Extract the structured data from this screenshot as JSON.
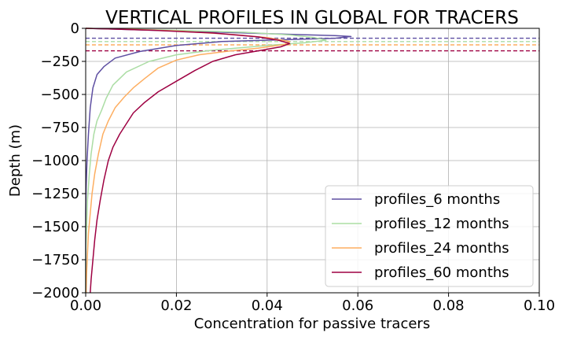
{
  "chart_data": {
    "type": "line",
    "title": "VERTICAL PROFILES IN GLOBAL FOR TRACERS",
    "xlabel": "Concentration for passive tracers",
    "ylabel": "Depth (m)",
    "xlim": [
      0.0,
      0.1
    ],
    "ylim": [
      -2000,
      0
    ],
    "xticks": [
      "0.00",
      "0.02",
      "0.04",
      "0.06",
      "0.08",
      "0.10"
    ],
    "yticks": [
      "0",
      "−250",
      "−500",
      "−750",
      "−1000",
      "−1250",
      "−1500",
      "−1750",
      "−2000"
    ],
    "grid": true,
    "legend_position": "lower-right",
    "series": [
      {
        "name": "profiles_6 months",
        "color": "#5e4fa2",
        "peak_depth_line": -75,
        "points": [
          [
            0.0,
            0
          ],
          [
            0.005,
            -5
          ],
          [
            0.015,
            -15
          ],
          [
            0.03,
            -30
          ],
          [
            0.045,
            -45
          ],
          [
            0.055,
            -55
          ],
          [
            0.0585,
            -62
          ],
          [
            0.055,
            -75
          ],
          [
            0.045,
            -85
          ],
          [
            0.03,
            -100
          ],
          [
            0.02,
            -130
          ],
          [
            0.012,
            -175
          ],
          [
            0.0065,
            -225
          ],
          [
            0.004,
            -290
          ],
          [
            0.0025,
            -350
          ],
          [
            0.0016,
            -450
          ],
          [
            0.001,
            -600
          ],
          [
            0.0006,
            -800
          ],
          [
            0.0003,
            -1000
          ],
          [
            0.0001,
            -1200
          ],
          [
            0.0,
            -1400
          ],
          [
            0.0,
            -2000
          ]
        ]
      },
      {
        "name": "profiles_12 months",
        "color": "#abdda4",
        "peak_depth_line": -100,
        "points": [
          [
            0.0,
            0
          ],
          [
            0.008,
            -5
          ],
          [
            0.02,
            -15
          ],
          [
            0.035,
            -30
          ],
          [
            0.045,
            -50
          ],
          [
            0.0505,
            -70
          ],
          [
            0.053,
            -90
          ],
          [
            0.048,
            -110
          ],
          [
            0.04,
            -130
          ],
          [
            0.028,
            -165
          ],
          [
            0.02,
            -200
          ],
          [
            0.014,
            -250
          ],
          [
            0.009,
            -330
          ],
          [
            0.006,
            -430
          ],
          [
            0.0045,
            -530
          ],
          [
            0.0035,
            -620
          ],
          [
            0.0025,
            -700
          ],
          [
            0.0018,
            -800
          ],
          [
            0.0012,
            -950
          ],
          [
            0.0008,
            -1100
          ],
          [
            0.0004,
            -1300
          ],
          [
            0.0002,
            -1500
          ],
          [
            0.0,
            -1700
          ],
          [
            0.0,
            -2000
          ]
        ]
      },
      {
        "name": "profiles_24 months",
        "color": "#fdae61",
        "peak_depth_line": -125,
        "points": [
          [
            0.0,
            0
          ],
          [
            0.008,
            -5
          ],
          [
            0.02,
            -20
          ],
          [
            0.032,
            -45
          ],
          [
            0.04,
            -70
          ],
          [
            0.045,
            -100
          ],
          [
            0.044,
            -120
          ],
          [
            0.038,
            -150
          ],
          [
            0.032,
            -170
          ],
          [
            0.025,
            -200
          ],
          [
            0.02,
            -240
          ],
          [
            0.016,
            -300
          ],
          [
            0.013,
            -380
          ],
          [
            0.0105,
            -450
          ],
          [
            0.0085,
            -520
          ],
          [
            0.0065,
            -600
          ],
          [
            0.005,
            -700
          ],
          [
            0.0038,
            -800
          ],
          [
            0.0028,
            -950
          ],
          [
            0.002,
            -1100
          ],
          [
            0.0014,
            -1250
          ],
          [
            0.001,
            -1400
          ],
          [
            0.0006,
            -1550
          ],
          [
            0.0004,
            -1700
          ],
          [
            0.0002,
            -1850
          ],
          [
            0.0001,
            -2000
          ]
        ]
      },
      {
        "name": "profiles_60 months",
        "color": "#9e0142",
        "peak_depth_line": -170,
        "points": [
          [
            0.0,
            0
          ],
          [
            0.005,
            -5
          ],
          [
            0.015,
            -15
          ],
          [
            0.028,
            -35
          ],
          [
            0.038,
            -65
          ],
          [
            0.0425,
            -90
          ],
          [
            0.045,
            -115
          ],
          [
            0.043,
            -140
          ],
          [
            0.038,
            -170
          ],
          [
            0.033,
            -200
          ],
          [
            0.028,
            -250
          ],
          [
            0.024,
            -320
          ],
          [
            0.02,
            -400
          ],
          [
            0.016,
            -480
          ],
          [
            0.013,
            -560
          ],
          [
            0.0105,
            -640
          ],
          [
            0.009,
            -720
          ],
          [
            0.0075,
            -800
          ],
          [
            0.006,
            -900
          ],
          [
            0.005,
            -1000
          ],
          [
            0.004,
            -1150
          ],
          [
            0.0032,
            -1300
          ],
          [
            0.0025,
            -1450
          ],
          [
            0.002,
            -1600
          ],
          [
            0.0016,
            -1750
          ],
          [
            0.0012,
            -1900
          ],
          [
            0.001,
            -2000
          ]
        ]
      }
    ]
  }
}
